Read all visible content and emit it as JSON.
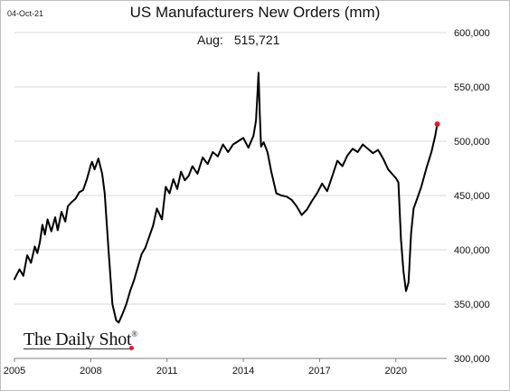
{
  "date_stamp": "04-Oct-21",
  "latest": {
    "label": "Aug:",
    "value": "515,721"
  },
  "logo": {
    "text": "The Daily Shot",
    "mark": "®"
  },
  "colors": {
    "line": "#000000",
    "marker": "#e31b23",
    "grid": "#d9d9d9"
  },
  "chart_data": {
    "type": "line",
    "title": "US Manufacturers New Orders (mm)",
    "xlabel": "",
    "ylabel": "",
    "xlim": [
      2005.0,
      2022.0
    ],
    "ylim": [
      300000,
      600000
    ],
    "x_ticks": [
      {
        "value": 2005,
        "label": "2005"
      },
      {
        "value": 2008,
        "label": "2008"
      },
      {
        "value": 2011,
        "label": "2011"
      },
      {
        "value": 2014,
        "label": "2014"
      },
      {
        "value": 2017,
        "label": "2017"
      },
      {
        "value": 2020,
        "label": "2020"
      }
    ],
    "y_ticks": [
      {
        "value": 300000,
        "label": "300,000"
      },
      {
        "value": 350000,
        "label": "350,000"
      },
      {
        "value": 400000,
        "label": "400,000"
      },
      {
        "value": 450000,
        "label": "450,000"
      },
      {
        "value": 500000,
        "label": "500,000"
      },
      {
        "value": 550000,
        "label": "550,000"
      },
      {
        "value": 600000,
        "label": "600,000"
      }
    ],
    "grid": true,
    "y_axis_position": "right",
    "series": [
      {
        "x": [
          2005.0,
          2005.2,
          2005.35,
          2005.5,
          2005.65,
          2005.8,
          2005.9,
          2006.0,
          2006.1,
          2006.2,
          2006.3,
          2006.45,
          2006.6,
          2006.7,
          2006.85,
          2007.0,
          2007.1,
          2007.25,
          2007.4,
          2007.55,
          2007.7,
          2007.85,
          2008.0,
          2008.05,
          2008.15,
          2008.3,
          2008.45,
          2008.55,
          2008.7,
          2008.85,
          2009.0,
          2009.1,
          2009.25,
          2009.4,
          2009.55,
          2009.7,
          2009.85,
          2010.0,
          2010.15,
          2010.3,
          2010.45,
          2010.6,
          2010.8,
          2010.95,
          2011.1,
          2011.25,
          2011.4,
          2011.55,
          2011.7,
          2011.85,
          2012.0,
          2012.2,
          2012.4,
          2012.6,
          2012.8,
          2013.0,
          2013.2,
          2013.4,
          2013.6,
          2013.8,
          2014.0,
          2014.2,
          2014.4,
          2014.5,
          2014.55,
          2014.6,
          2014.65,
          2014.7,
          2014.8,
          2014.95,
          2015.1,
          2015.3,
          2015.5,
          2015.7,
          2015.9,
          2016.1,
          2016.3,
          2016.5,
          2016.7,
          2016.9,
          2017.1,
          2017.3,
          2017.5,
          2017.7,
          2017.9,
          2018.1,
          2018.3,
          2018.5,
          2018.7,
          2018.9,
          2019.1,
          2019.3,
          2019.5,
          2019.7,
          2019.85,
          2020.0,
          2020.1,
          2020.2,
          2020.3,
          2020.4,
          2020.5,
          2020.6,
          2020.7,
          2020.85,
          2021.0,
          2021.2,
          2021.4,
          2021.55,
          2021.63
        ],
        "y": [
          373000,
          382000,
          376000,
          395000,
          388000,
          403000,
          397000,
          407000,
          423000,
          414000,
          428000,
          417000,
          430000,
          418000,
          435000,
          426000,
          440000,
          444000,
          447000,
          453000,
          455000,
          465000,
          478000,
          481000,
          474000,
          484000,
          470000,
          452000,
          400000,
          350000,
          335000,
          333000,
          341000,
          350000,
          362000,
          372000,
          384000,
          396000,
          402000,
          412000,
          422000,
          438000,
          428000,
          458000,
          452000,
          465000,
          456000,
          472000,
          464000,
          468000,
          477000,
          470000,
          485000,
          479000,
          490000,
          486000,
          497000,
          490000,
          497000,
          500000,
          503000,
          494000,
          505000,
          519000,
          540000,
          563000,
          525000,
          495000,
          499000,
          490000,
          472000,
          452000,
          450000,
          449000,
          446000,
          440000,
          432000,
          437000,
          445000,
          452000,
          461000,
          454000,
          468000,
          482000,
          477000,
          487000,
          493000,
          490000,
          497000,
          493000,
          489000,
          492000,
          484000,
          474000,
          470000,
          466000,
          462000,
          410000,
          380000,
          362000,
          370000,
          415000,
          438000,
          448000,
          458000,
          475000,
          490000,
          505000,
          515721
        ]
      }
    ],
    "latest_point": {
      "x": 2021.63,
      "y": 515721
    }
  }
}
